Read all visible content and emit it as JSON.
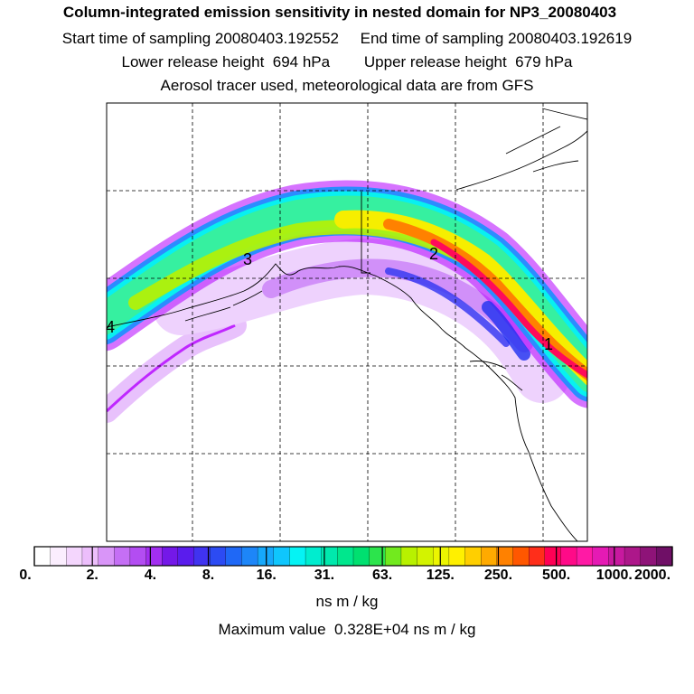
{
  "header": {
    "title": "Column-integrated emission sensitivity in nested domain for NP3_20080403",
    "sampling": "Start time of sampling 20080403.192552     End time of sampling 20080403.192619",
    "release": "Lower release height  694 hPa        Upper release height  679 hPa",
    "tracer": "Aerosol tracer used, meteorological data are from GFS"
  },
  "map": {
    "labels": [
      "1",
      "2",
      "3",
      "4"
    ],
    "colors": {
      "plume_core": "#ff0a5a",
      "plume_mid": "#f6ee00",
      "plume_low": "#36f0a0",
      "plume_edge": "#2b8cff",
      "plume_faint": "#b400ff",
      "coast": "#000000",
      "grid": "#000000"
    }
  },
  "colorbar": {
    "ticks": [
      "0.",
      "2.",
      "4.",
      "8.",
      "16.",
      "31.",
      "63.",
      "125.",
      "250.",
      "500.",
      "1000.",
      "2000."
    ],
    "colors": [
      "#ffffff",
      "#fbeefe",
      "#f4d6fd",
      "#ecbefb",
      "#d995f8",
      "#c56ff5",
      "#b34df2",
      "#a22ef0",
      "#7418e8",
      "#5a1ced",
      "#4033f0",
      "#2c4bf3",
      "#1f68f6",
      "#1d86f8",
      "#16a8fb",
      "#0fc6fd",
      "#05f3f4",
      "#00edcf",
      "#00e9ad",
      "#00e78d",
      "#00e070",
      "#2ce44c",
      "#72ea1e",
      "#b8f100",
      "#d3f300",
      "#ecf500",
      "#fff000",
      "#ffcf00",
      "#ffaa00",
      "#ff8100",
      "#ff5700",
      "#ff2e1a",
      "#ff0055",
      "#ff0a88",
      "#ff1aa5",
      "#e51ab4",
      "#c8199f",
      "#ad178a",
      "#8e1378",
      "#6f0f66"
    ],
    "units": "ns m / kg"
  },
  "footer": {
    "max_value": "Maximum value  0.328E+04 ns m / kg"
  }
}
